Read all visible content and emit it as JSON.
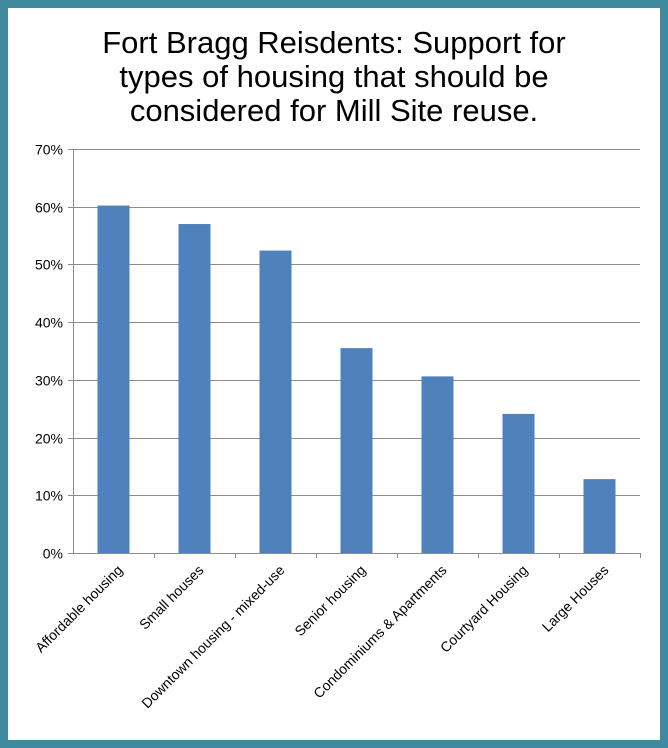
{
  "chart_data": {
    "type": "bar",
    "title_lines": [
      "Fort Bragg Reisdents: Support for",
      "types of housing that should be",
      "considered for Mill Site reuse."
    ],
    "categories": [
      "Affordable housing",
      "Small houses",
      "Downtown housing - mixed-use",
      "Senior housing",
      "Condominiums & Apartments",
      "Courtyard Housing",
      "Large Houses"
    ],
    "values": [
      60.2,
      57.0,
      52.4,
      35.5,
      30.6,
      24.1,
      12.8
    ],
    "ylim": [
      0,
      70
    ],
    "yticks": [
      0,
      10,
      20,
      30,
      40,
      50,
      60,
      70
    ],
    "ytick_labels": [
      "0%",
      "10%",
      "20%",
      "30%",
      "40%",
      "50%",
      "60%",
      "70%"
    ],
    "xlabel": "",
    "ylabel": "",
    "grid": true,
    "legend": "none",
    "bar_color": "#4f81bd",
    "grid_color": "#8c8c8c",
    "frame_color": "#3f8a9e"
  }
}
